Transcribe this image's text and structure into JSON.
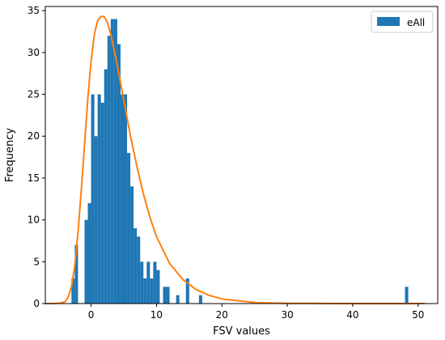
{
  "chart_data": {
    "type": "bar",
    "xlabel": "FSV values",
    "ylabel": "Frequency",
    "xlim": [
      -7.0,
      53.0
    ],
    "ylim": [
      0,
      35.5
    ],
    "xticks": [
      0,
      10,
      20,
      30,
      40,
      50
    ],
    "yticks": [
      0,
      5,
      10,
      15,
      20,
      25,
      30,
      35
    ],
    "grid": false,
    "legend": {
      "position": "top-right",
      "entries": [
        "eAll"
      ]
    },
    "colors": {
      "bars": "#1f77b4",
      "curve": "#ff7f0e"
    },
    "series": [
      {
        "name": "eAll",
        "type": "histogram",
        "bin_width": 0.5,
        "bins": [
          {
            "x": -3.0,
            "count": 3
          },
          {
            "x": -2.5,
            "count": 7
          },
          {
            "x": -1.0,
            "count": 10
          },
          {
            "x": -0.5,
            "count": 12
          },
          {
            "x": 0.0,
            "count": 25
          },
          {
            "x": 0.5,
            "count": 20
          },
          {
            "x": 1.0,
            "count": 25
          },
          {
            "x": 1.5,
            "count": 24
          },
          {
            "x": 2.0,
            "count": 28
          },
          {
            "x": 2.5,
            "count": 32
          },
          {
            "x": 3.0,
            "count": 34
          },
          {
            "x": 3.5,
            "count": 34
          },
          {
            "x": 4.0,
            "count": 31
          },
          {
            "x": 4.5,
            "count": 25
          },
          {
            "x": 5.0,
            "count": 25
          },
          {
            "x": 5.5,
            "count": 18
          },
          {
            "x": 6.0,
            "count": 14
          },
          {
            "x": 6.5,
            "count": 9
          },
          {
            "x": 7.0,
            "count": 8
          },
          {
            "x": 7.5,
            "count": 5
          },
          {
            "x": 8.0,
            "count": 3
          },
          {
            "x": 8.5,
            "count": 5
          },
          {
            "x": 9.0,
            "count": 3
          },
          {
            "x": 9.5,
            "count": 5
          },
          {
            "x": 10.0,
            "count": 4
          },
          {
            "x": 11.0,
            "count": 2
          },
          {
            "x": 11.5,
            "count": 2
          },
          {
            "x": 13.0,
            "count": 1
          },
          {
            "x": 14.5,
            "count": 3
          },
          {
            "x": 16.5,
            "count": 1
          },
          {
            "x": 48.0,
            "count": 2
          }
        ]
      },
      {
        "name": "",
        "type": "line",
        "points": [
          [
            -7,
            0
          ],
          [
            -5,
            0.02
          ],
          [
            -4,
            0.2
          ],
          [
            -3.5,
            0.8
          ],
          [
            -3,
            2.0
          ],
          [
            -2.5,
            4.5
          ],
          [
            -2,
            8.5
          ],
          [
            -1.5,
            13.5
          ],
          [
            -1,
            19
          ],
          [
            -0.5,
            24.5
          ],
          [
            0,
            29
          ],
          [
            0.5,
            32.2
          ],
          [
            1,
            33.8
          ],
          [
            1.5,
            34.3
          ],
          [
            2,
            34.3
          ],
          [
            2.5,
            33.6
          ],
          [
            3,
            32.2
          ],
          [
            4,
            28.5
          ],
          [
            5,
            24.3
          ],
          [
            6,
            20.1
          ],
          [
            7,
            16.4
          ],
          [
            8,
            13.1
          ],
          [
            9,
            10.3
          ],
          [
            10,
            8.0
          ],
          [
            12,
            4.8
          ],
          [
            14,
            2.9
          ],
          [
            16,
            1.7
          ],
          [
            18,
            1.0
          ],
          [
            20,
            0.55
          ],
          [
            25,
            0.12
          ],
          [
            30,
            0.03
          ],
          [
            40,
            0.0
          ],
          [
            51,
            0.0
          ]
        ]
      }
    ]
  }
}
